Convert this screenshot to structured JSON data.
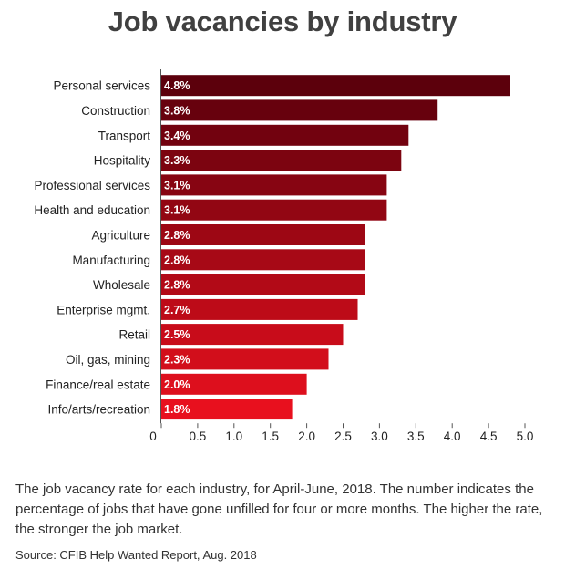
{
  "chart_data": {
    "type": "bar",
    "orientation": "horizontal",
    "title": "Job vacancies by industry",
    "categories": [
      "Personal services",
      "Construction",
      "Transport",
      "Hospitality",
      "Professional services",
      "Health and education",
      "Agriculture",
      "Manufacturing",
      "Wholesale",
      "Enterprise mgmt.",
      "Retail",
      "Oil, gas, mining",
      "Finance/real estate",
      "Info/arts/recreation"
    ],
    "values": [
      4.8,
      3.8,
      3.4,
      3.3,
      3.1,
      3.1,
      2.8,
      2.8,
      2.8,
      2.7,
      2.5,
      2.3,
      2.0,
      1.8
    ],
    "value_labels": [
      "4.8%",
      "3.8%",
      "3.4%",
      "3.3%",
      "3.1%",
      "3.1%",
      "2.8%",
      "2.8%",
      "2.8%",
      "2.7%",
      "2.5%",
      "2.3%",
      "2.0%",
      "1.8%"
    ],
    "xlim": [
      0,
      5.0
    ],
    "x_ticks": [
      "0",
      "0.5",
      "1.0",
      "1.5",
      "2.0",
      "2.5",
      "3.0",
      "3.5",
      "4.0",
      "4.5",
      "5.0"
    ],
    "xlabel": "",
    "ylabel": "",
    "grid": false,
    "colors": {
      "darkest": "#5c000c",
      "lightest": "#e8101e"
    }
  },
  "caption": "The job vacancy rate for each industry, for April-June, 2018. The number indicates the percentage of jobs that have gone unfilled for four or more months. The higher the rate, the stronger the job market.",
  "source": "Source: CFIB Help Wanted Report, Aug. 2018"
}
